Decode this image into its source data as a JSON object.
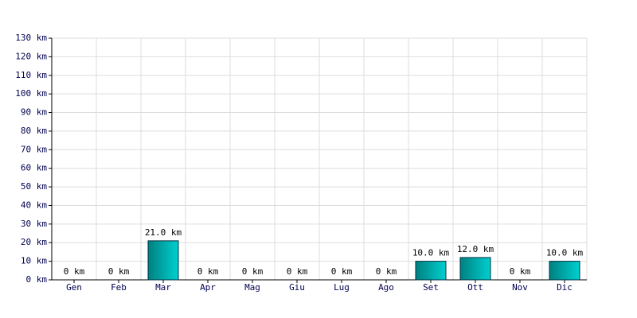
{
  "chart_data": {
    "type": "bar",
    "categories": [
      "Gen",
      "Feb",
      "Mar",
      "Apr",
      "Mag",
      "Giu",
      "Lug",
      "Ago",
      "Set",
      "Ott",
      "Nov",
      "Dic"
    ],
    "values": [
      0,
      0,
      21,
      0,
      0,
      0,
      0,
      0,
      10,
      12,
      0,
      10
    ],
    "value_labels": [
      "0 km",
      "0 km",
      "21.0 km",
      "0 km",
      "0 km",
      "0 km",
      "0 km",
      "0 km",
      "10.0 km",
      "12.0 km",
      "0 km",
      "10.0 km"
    ],
    "color": "#00d0d0",
    "ylim": [
      0,
      130
    ],
    "yticks": [
      {
        "value": 0,
        "label": "0 km"
      },
      {
        "value": 10,
        "label": "10 km"
      },
      {
        "value": 20,
        "label": "20 km"
      },
      {
        "value": 30,
        "label": "30 km"
      },
      {
        "value": 40,
        "label": "40 km"
      },
      {
        "value": 50,
        "label": "50 km"
      },
      {
        "value": 60,
        "label": "60 km"
      },
      {
        "value": 70,
        "label": "70 km"
      },
      {
        "value": 80,
        "label": "80 km"
      },
      {
        "value": 90,
        "label": "90 km"
      },
      {
        "value": 100,
        "label": "100 km"
      },
      {
        "value": 110,
        "label": "110 km"
      },
      {
        "value": 120,
        "label": "120 km"
      },
      {
        "value": 130,
        "label": "130 km"
      }
    ],
    "grid": true
  }
}
